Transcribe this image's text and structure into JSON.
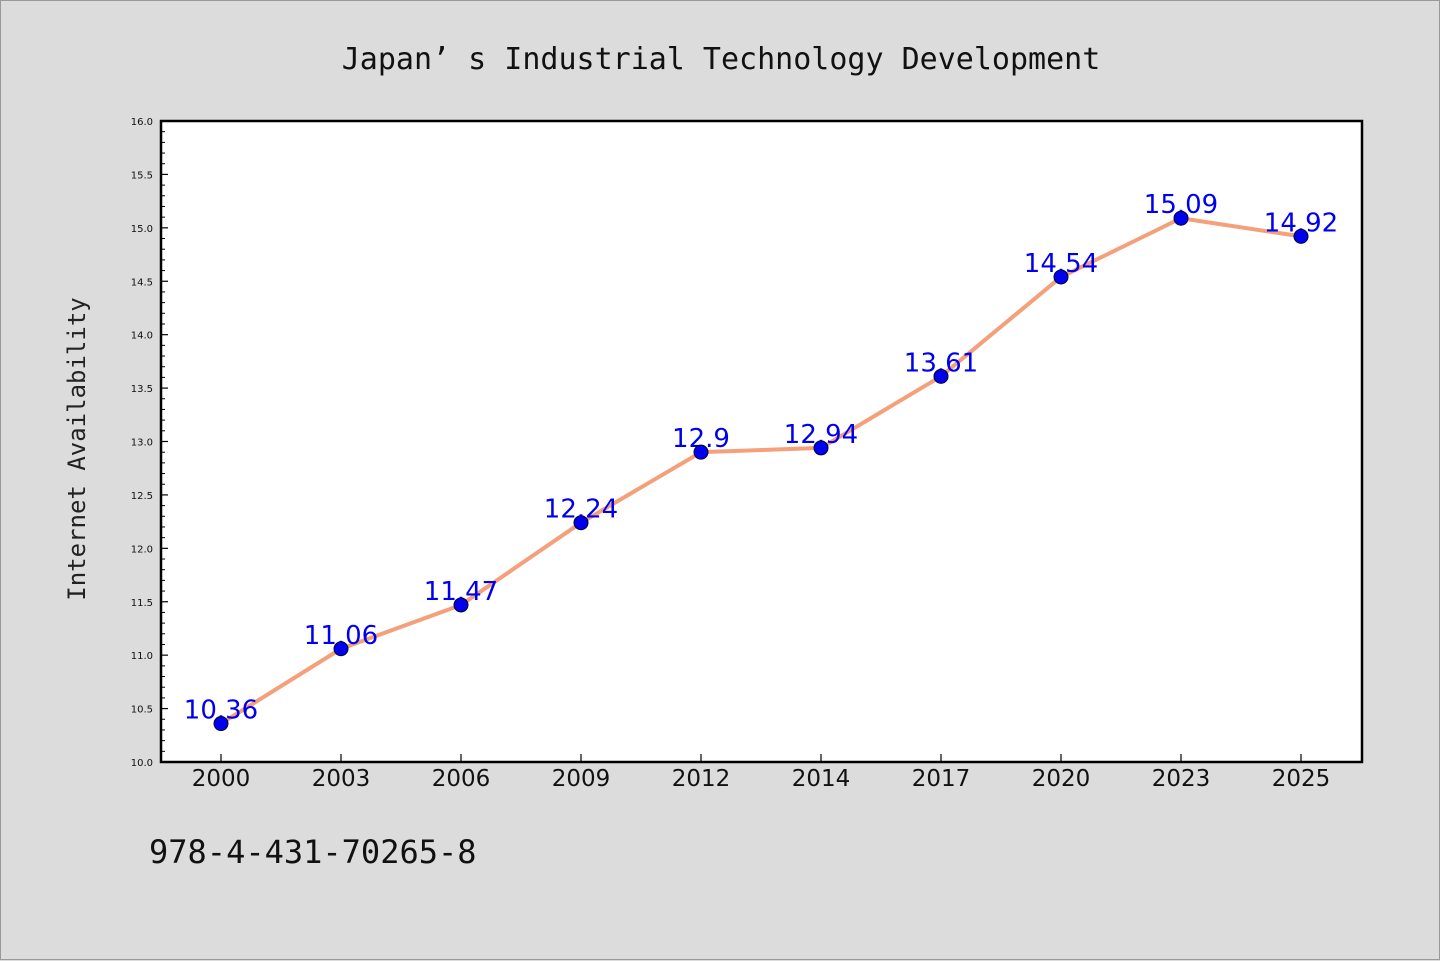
{
  "chart_data": {
    "type": "line",
    "title": "Japan’ s Industrial Technology Development",
    "xlabel": "",
    "ylabel": "Internet Availability",
    "categories": [
      "2000",
      "2003",
      "2006",
      "2009",
      "2012",
      "2014",
      "2017",
      "2020",
      "2023",
      "2025"
    ],
    "series": [
      {
        "values": [
          10.36,
          11.06,
          11.47,
          12.24,
          12.9,
          12.94,
          13.61,
          14.54,
          15.09,
          14.92
        ]
      }
    ],
    "data_labels": [
      "10.36",
      "11.06",
      "11.47",
      "12.24",
      "12.9",
      "12.94",
      "13.61",
      "14.54",
      "15.09",
      "14.92"
    ],
    "ylim": [
      10.0,
      16.0
    ],
    "yticks": [
      "10.0",
      "10.5",
      "11.0",
      "11.5",
      "12.0",
      "12.5",
      "13.0",
      "13.5",
      "14.0",
      "14.5",
      "15.0",
      "15.5",
      "16.0"
    ],
    "grid": false,
    "colors": {
      "line": "#f4a07a",
      "marker": "#0000ee",
      "label": "#0000ee",
      "plot_bg": "#ffffff",
      "page_bg": "#dcdcdc"
    }
  },
  "footer": {
    "code": "978-4-431-70265-8"
  }
}
